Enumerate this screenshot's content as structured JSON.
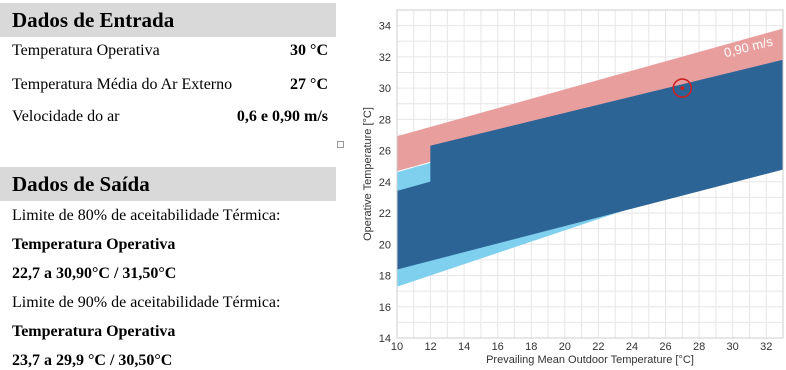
{
  "entrada": {
    "title": "Dados de Entrada",
    "rows": [
      {
        "label": "Temperatura Operativa",
        "value": "30 °C"
      },
      {
        "label": "Temperatura Média do Ar Externo",
        "value": "27 °C"
      },
      {
        "label": "Velocidade do ar",
        "value": "0,6 e 0,90 m/s"
      }
    ]
  },
  "saida": {
    "title": "Dados de Saída",
    "lines": [
      "Limite de 80% de aceitabilidade Térmica:",
      "Temperatura Operativa",
      "22,7 a 30,90°C / 31,50°C",
      "Limite de 90% de aceitabilidade Térmica:",
      "Temperatura Operativa",
      "23,7 a 29,9 °C / 30,50°C"
    ]
  },
  "chart_data": {
    "type": "area",
    "title": "",
    "xlabel": "Prevailing Mean Outdoor Temperature [°C]",
    "ylabel": "Operative Temperature [°C]",
    "xlim": [
      10,
      33
    ],
    "ylim": [
      14,
      35
    ],
    "xticks": [
      10,
      12,
      14,
      16,
      18,
      20,
      22,
      24,
      26,
      28,
      30,
      32
    ],
    "yticks": [
      14,
      16,
      18,
      20,
      22,
      24,
      26,
      28,
      30,
      32,
      34
    ],
    "grid": true,
    "series": [
      {
        "name": "",
        "color": "#e99e9e",
        "lower": [
          [
            10,
            24.7
          ],
          [
            12,
            25.3
          ],
          [
            33,
            31.5
          ]
        ],
        "upper": [
          [
            10,
            26.9
          ],
          [
            12,
            27.5
          ],
          [
            33,
            33.8
          ]
        ]
      },
      {
        "name": "",
        "color": "#7fcfef",
        "lower": [
          [
            10,
            17.3
          ],
          [
            33,
            25.6
          ]
        ],
        "upper": [
          [
            10,
            24.6
          ],
          [
            12,
            25.2
          ],
          [
            33,
            31.5
          ]
        ]
      },
      {
        "name": "",
        "color": "#2d6496",
        "lower": [
          [
            10,
            18.4
          ],
          [
            33,
            24.8
          ]
        ],
        "upper": [
          [
            10,
            23.4
          ],
          [
            12,
            24.0
          ],
          [
            12,
            26.3
          ],
          [
            33,
            31.8
          ]
        ]
      }
    ],
    "annotations": [
      {
        "text": "0,90 m/s",
        "color": "#ffffff"
      }
    ],
    "marker": {
      "x": 27,
      "y": 30,
      "color": "#cc2222"
    }
  }
}
